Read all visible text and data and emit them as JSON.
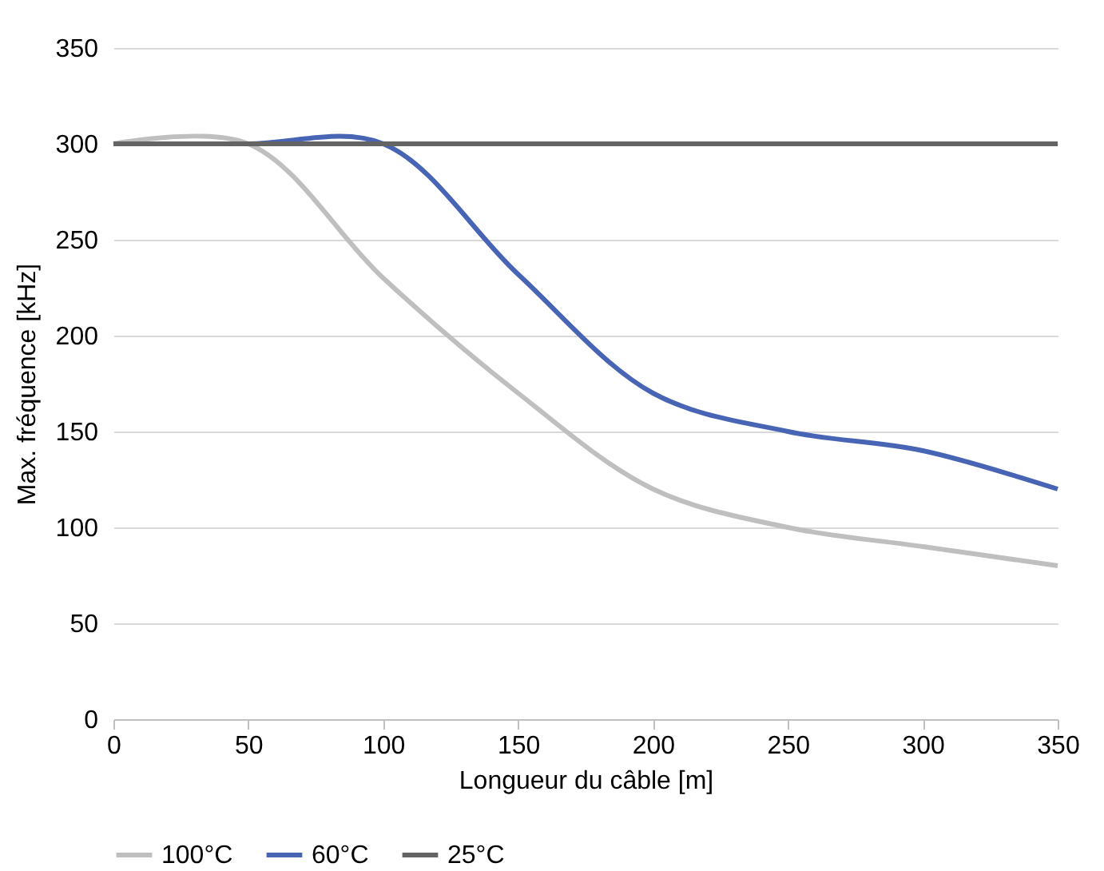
{
  "chart_data": {
    "type": "line",
    "xlabel": "Longueur du câble [m]",
    "ylabel": "Max. fréquence [kHz]",
    "x": [
      0,
      50,
      100,
      150,
      200,
      250,
      300,
      350
    ],
    "series": [
      {
        "name": "100°C",
        "color": "#bfbfbf",
        "values": [
          300,
          300,
          230,
          170,
          120,
          100,
          90,
          80
        ]
      },
      {
        "name": "60°C",
        "color": "#4765b4",
        "values": [
          300,
          300,
          300,
          232,
          170,
          150,
          140,
          120
        ]
      },
      {
        "name": "25°C",
        "color": "#646464",
        "values": [
          300,
          300,
          300,
          300,
          300,
          300,
          300,
          300
        ]
      }
    ],
    "xlim": [
      0,
      350
    ],
    "xticks": [
      0,
      50,
      100,
      150,
      200,
      250,
      300,
      350
    ],
    "ylim": [
      0,
      350
    ],
    "yticks": [
      0,
      50,
      100,
      150,
      200,
      250,
      300,
      350
    ],
    "grid": "y",
    "legend": "bottom",
    "marker": "none",
    "line_style": "solid"
  }
}
